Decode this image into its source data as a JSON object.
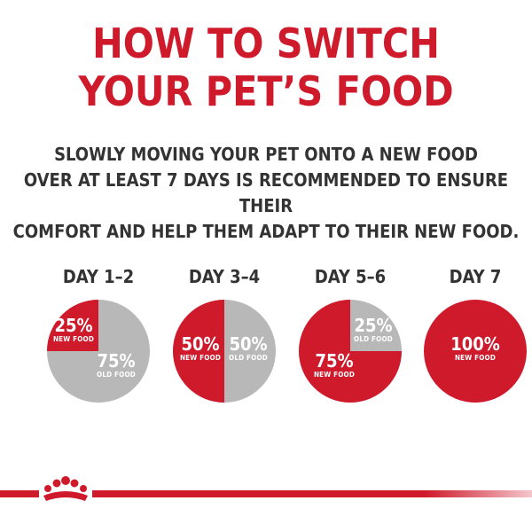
{
  "title": [
    "HOW TO SWITCH",
    "YOUR PET’S FOOD"
  ],
  "subtitle": [
    "SLOWLY MOVING YOUR PET ONTO A NEW FOOD",
    "OVER AT LEAST 7 DAYS IS RECOMMENDED TO ENSURE THEIR",
    "COMFORT AND HELP THEM ADAPT TO THEIR NEW FOOD."
  ],
  "colors": {
    "brand_red": "#cf1a2c",
    "old_food_grey": "#b8b8b8",
    "text_dark": "#333333"
  },
  "days": [
    {
      "label": "DAY 1–2",
      "new_label": "25%",
      "new_caption": "NEW FOOD",
      "old_label": "75%",
      "old_caption": "OLD FOOD",
      "new_fraction": 0.25
    },
    {
      "label": "DAY 3–4",
      "new_label": "50%",
      "new_caption": "NEW FOOD",
      "old_label": "50%",
      "old_caption": "OLD FOOD",
      "new_fraction": 0.5
    },
    {
      "label": "DAY 5–6",
      "new_label": "75%",
      "new_caption": "NEW FOOD",
      "old_label": "25%",
      "old_caption": "OLD FOOD",
      "new_fraction": 0.75
    },
    {
      "label": "DAY 7",
      "new_label": "100%",
      "new_caption": "NEW FOOD",
      "new_fraction": 1.0
    }
  ],
  "logo_icon": "royal-canin-crown-icon"
}
